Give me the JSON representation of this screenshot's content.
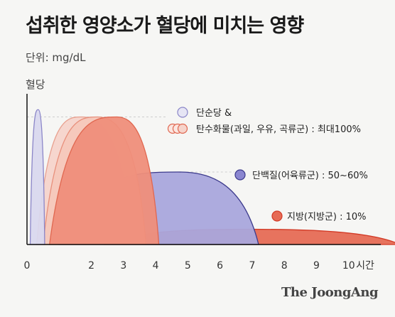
{
  "title": "섭취한 영양소가 혈당에 미치는 영향",
  "unit_label": "단위: mg/dL",
  "source": "The JoongAng",
  "chart_data": {
    "type": "area",
    "ylabel": "혈당",
    "xlabel": "시간",
    "x_ticks": [
      0,
      2,
      3,
      4,
      5,
      6,
      7,
      8,
      9,
      10
    ],
    "xlim": [
      0,
      11
    ],
    "ylim": [
      0,
      1
    ],
    "grid": false,
    "series": [
      {
        "name": "단순당 &",
        "start": 0.1,
        "peak": 0.35,
        "end": 0.55,
        "level": 0.93,
        "color": "#8b86c8",
        "fill": "#d9d8ee"
      },
      {
        "name": "탄수화물(과일, 우유, 곡류군) : 최대100%",
        "start": 0.3,
        "peak": 1.7,
        "end": 3.3,
        "level": 0.88,
        "color": "#e8a08f",
        "fill": "#f6d4cb"
      },
      {
        "name": "탄수화물(과일, 우유, 곡류군) : 최대100%",
        "start": 0.5,
        "peak": 2.2,
        "end": 3.7,
        "level": 0.88,
        "color": "#e8907c",
        "fill": "#f5c8bb"
      },
      {
        "name": "탄수화물(과일, 우유, 곡류군) : 최대100%",
        "start": 0.7,
        "peak": 2.8,
        "end": 4.1,
        "level": 0.88,
        "color": "#e06750",
        "fill": "#ef8e7a"
      },
      {
        "name": "단백질(어육류군) : 50~60%",
        "start": 1.0,
        "peak": 4.7,
        "end": 7.2,
        "level": 0.5,
        "color": "#3c3a8c",
        "fill": "#a9a6dc"
      },
      {
        "name": "지방(지방군) : 10%",
        "start": 2.4,
        "peak": 7.0,
        "end": 11.6,
        "level": 0.105,
        "color": "#d23a26",
        "fill": "#e66b55"
      }
    ],
    "legend": [
      {
        "label": "단순당 &",
        "kind": "single",
        "color": "#8b86c8",
        "fill": "#e6e5f4"
      },
      {
        "label": "탄수화물(과일, 우유, 곡류군) : 최대100%",
        "kind": "triple",
        "color": "#e06750",
        "fill": "#f6d4cb"
      },
      {
        "label": "단백질(어육류군) : 50~60%",
        "kind": "single",
        "color": "#3c3a8c",
        "fill": "#8a86d0"
      },
      {
        "label": "지방(지방군) : 10%",
        "kind": "single",
        "color": "#d23a26",
        "fill": "#e66b55"
      }
    ]
  }
}
